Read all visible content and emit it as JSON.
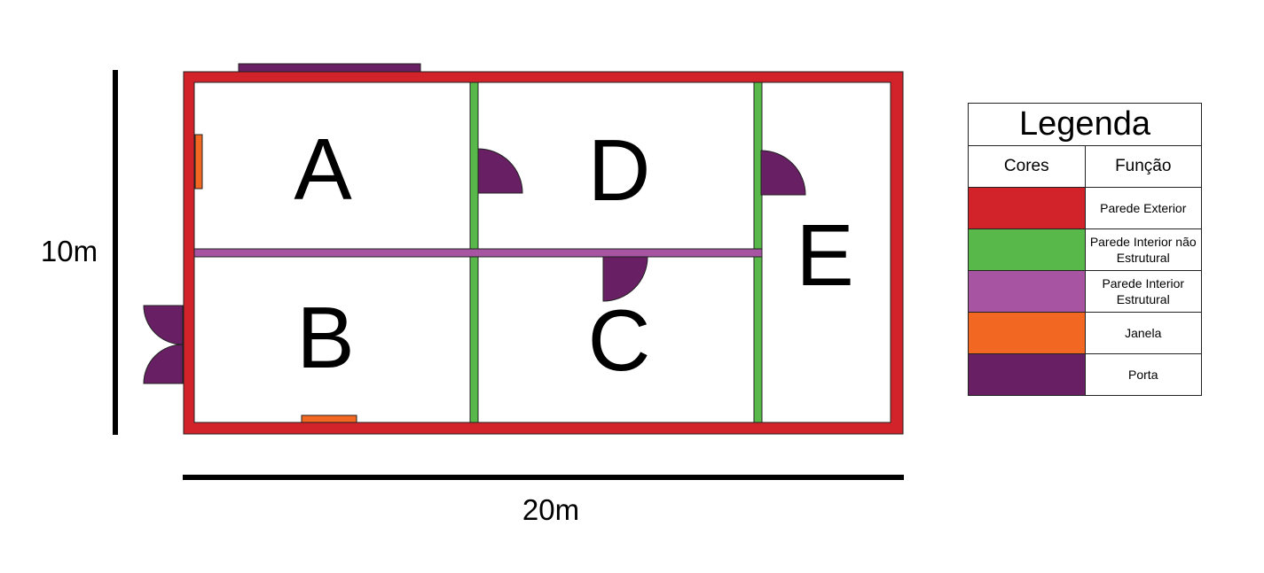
{
  "rooms": {
    "a": "A",
    "b": "B",
    "c": "C",
    "d": "D",
    "e": "E"
  },
  "dimensions": {
    "height": "10m",
    "width": "20m"
  },
  "colors": {
    "exterior_wall": "#d2232a",
    "interior_wall_nonstructural": "#58b94a",
    "interior_wall_structural": "#a755a3",
    "window": "#f26722",
    "door": "#681f63"
  },
  "legend": {
    "title": "Legenda",
    "col_colors": "Cores",
    "col_function": "Função",
    "items": [
      {
        "color": "#d2232a",
        "label": "Parede Exterior"
      },
      {
        "color": "#58b94a",
        "label": "Parede Interior não Estrutural"
      },
      {
        "color": "#a755a3",
        "label": "Parede Interior Estrutural"
      },
      {
        "color": "#f26722",
        "label": "Janela"
      },
      {
        "color": "#681f63",
        "label": "Porta"
      }
    ]
  }
}
